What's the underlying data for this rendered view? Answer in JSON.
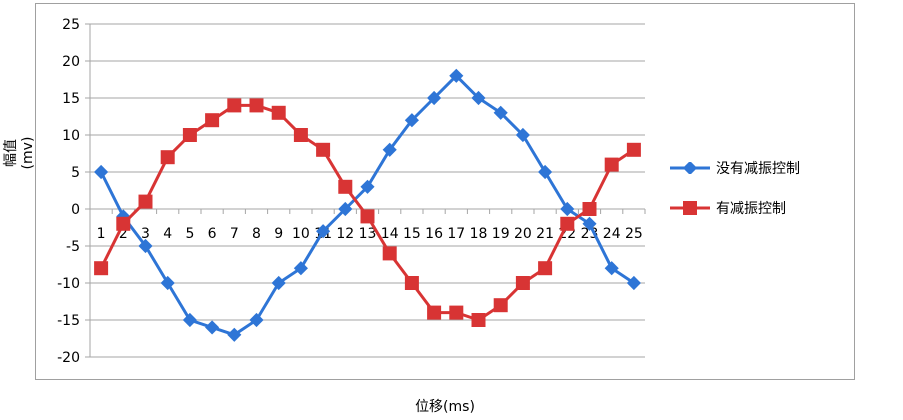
{
  "chart_data": {
    "type": "line",
    "xlabel": "位移(ms)",
    "ylabel": "幅值(mv)",
    "categories": [
      "1",
      "2",
      "3",
      "4",
      "5",
      "6",
      "7",
      "8",
      "9",
      "10",
      "11",
      "12",
      "13",
      "14",
      "15",
      "16",
      "17",
      "18",
      "19",
      "20",
      "21",
      "22",
      "23",
      "24",
      "25"
    ],
    "ylim": [
      -20,
      25
    ],
    "yticks": [
      25,
      20,
      15,
      10,
      5,
      0,
      -5,
      -10,
      -15,
      -20
    ],
    "grid": true,
    "legend": "right",
    "series": [
      {
        "name": "没有减振控制",
        "color": "#2e75d6",
        "marker": "diamond",
        "values": [
          5,
          -1,
          -5,
          -10,
          -15,
          -16,
          -17,
          -15,
          -10,
          -8,
          -3,
          0,
          3,
          8,
          12,
          15,
          18,
          15,
          13,
          10,
          5,
          0,
          -2,
          -8,
          -10
        ]
      },
      {
        "name": "有减振控制",
        "color": "#d83434",
        "marker": "square",
        "values": [
          -8,
          -2,
          1,
          7,
          10,
          12,
          14,
          14,
          13,
          10,
          8,
          3,
          -1,
          -6,
          -10,
          -14,
          -14,
          -15,
          -13,
          -10,
          -8,
          -2,
          0,
          6,
          8
        ]
      }
    ]
  }
}
